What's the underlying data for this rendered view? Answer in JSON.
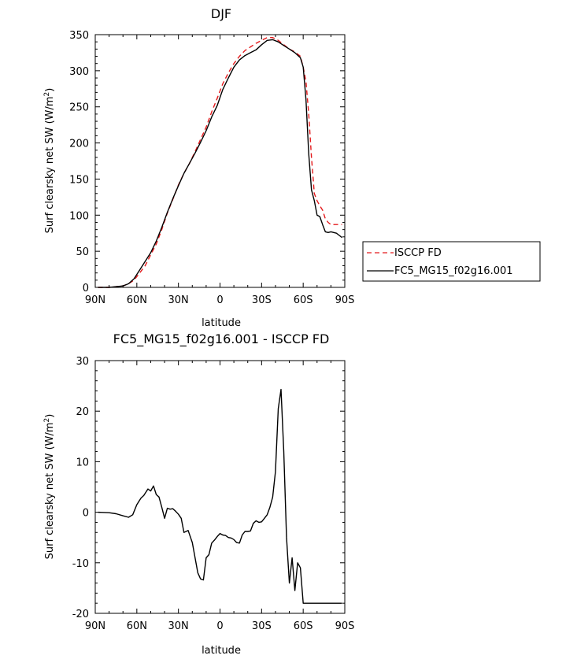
{
  "chart_data": [
    {
      "type": "line",
      "title": "DJF",
      "xlabel": "latitude",
      "ylabel": "Surf clearsky net SW (W/m",
      "ylabel_sup": "2",
      "ylabel_end": ")",
      "xlim": [
        -90,
        90
      ],
      "ylim": [
        0,
        350
      ],
      "x_ticks": [
        {
          "value": -90,
          "label": "90N"
        },
        {
          "value": -60,
          "label": "60N"
        },
        {
          "value": -30,
          "label": "30N"
        },
        {
          "value": 0,
          "label": "0"
        },
        {
          "value": 30,
          "label": "30S"
        },
        {
          "value": 60,
          "label": "60S"
        },
        {
          "value": 90,
          "label": "90S"
        }
      ],
      "y_ticks": [
        0,
        50,
        100,
        150,
        200,
        250,
        300,
        350
      ],
      "grid": false,
      "legend_position": "right",
      "series": [
        {
          "name": "ISCCP FD",
          "color": "#e41a1c",
          "dash": true,
          "x": [
            -88,
            -80,
            -75,
            -70,
            -66,
            -62,
            -58,
            -54,
            -50,
            -46,
            -42,
            -38,
            -34,
            -30,
            -26,
            -22,
            -18,
            -14,
            -10,
            -6,
            -2,
            2,
            6,
            10,
            14,
            18,
            22,
            26,
            30,
            34,
            38,
            42,
            46,
            50,
            54,
            58,
            60,
            62,
            64,
            66,
            68,
            70,
            72,
            74,
            76,
            78,
            80,
            82,
            84,
            86,
            88
          ],
          "y": [
            0,
            0,
            1,
            2,
            5,
            10,
            20,
            30,
            45,
            60,
            80,
            103,
            122,
            142,
            158,
            172,
            188,
            205,
            222,
            243,
            262,
            282,
            297,
            310,
            320,
            328,
            333,
            338,
            342,
            346,
            346,
            342,
            336,
            330,
            326,
            320,
            305,
            285,
            240,
            180,
            130,
            120,
            113,
            107,
            95,
            90,
            87,
            87,
            87,
            87,
            87
          ]
        },
        {
          "name": "FC5_MG15_f02g16.001",
          "color": "#000000",
          "dash": false,
          "x": [
            -88,
            -80,
            -75,
            -70,
            -66,
            -62,
            -58,
            -54,
            -50,
            -46,
            -42,
            -38,
            -34,
            -30,
            -26,
            -22,
            -18,
            -14,
            -10,
            -6,
            -2,
            2,
            6,
            10,
            14,
            18,
            22,
            26,
            30,
            34,
            38,
            42,
            46,
            50,
            54,
            58,
            60,
            62,
            64,
            66,
            68,
            70,
            72,
            74,
            76,
            78,
            80,
            82,
            84,
            86,
            88
          ],
          "y": [
            0,
            0,
            1,
            2,
            5,
            12,
            24,
            36,
            48,
            64,
            83,
            104,
            123,
            141,
            158,
            172,
            186,
            201,
            217,
            236,
            252,
            274,
            290,
            305,
            315,
            321,
            325,
            329,
            336,
            342,
            343,
            340,
            335,
            330,
            325,
            318,
            305,
            260,
            185,
            135,
            120,
            100,
            98,
            87,
            77,
            76,
            77,
            76,
            75,
            72,
            69
          ]
        }
      ]
    },
    {
      "type": "line",
      "title": "FC5_MG15_f02g16.001 - ISCCP FD",
      "xlabel": "latitude",
      "ylabel": "Surf clearsky net SW (W/m",
      "ylabel_sup": "2",
      "ylabel_end": ")",
      "xlim": [
        -90,
        90
      ],
      "ylim": [
        -20,
        30
      ],
      "x_ticks": [
        {
          "value": -90,
          "label": "90N"
        },
        {
          "value": -60,
          "label": "60N"
        },
        {
          "value": -30,
          "label": "30N"
        },
        {
          "value": 0,
          "label": "0"
        },
        {
          "value": 30,
          "label": "30S"
        },
        {
          "value": 60,
          "label": "60S"
        },
        {
          "value": 90,
          "label": "90S"
        }
      ],
      "y_ticks": [
        -20,
        -10,
        0,
        10,
        20,
        30
      ],
      "grid": false,
      "series": [
        {
          "color": "#000000",
          "dash": false,
          "x": [
            -88,
            -80,
            -75,
            -70,
            -66,
            -63,
            -60,
            -57,
            -55,
            -52,
            -50,
            -48,
            -46,
            -44,
            -42,
            -40,
            -38,
            -36,
            -34,
            -32,
            -30,
            -28,
            -26,
            -23,
            -20,
            -18,
            -16,
            -14,
            -12,
            -10,
            -8,
            -6,
            -4,
            -2,
            0,
            2,
            4,
            6,
            8,
            10,
            12,
            14,
            16,
            18,
            20,
            22,
            24,
            26,
            28,
            30,
            32,
            34,
            36,
            38,
            40,
            42,
            44,
            46,
            48,
            50,
            52,
            54,
            56,
            58,
            60,
            62,
            64,
            66,
            68,
            70,
            72,
            74,
            76,
            78,
            80,
            82,
            84,
            86,
            88
          ],
          "y": [
            0,
            -0.1,
            -0.3,
            -0.7,
            -1.0,
            -0.5,
            1.5,
            2.8,
            3.3,
            4.6,
            4.2,
            5.2,
            3.5,
            3.0,
            1.0,
            -1.2,
            0.8,
            0.6,
            0.7,
            0.2,
            -0.4,
            -1.2,
            -4.0,
            -3.6,
            -6.0,
            -9.0,
            -12.0,
            -13.2,
            -13.4,
            -9.0,
            -8.4,
            -6.1,
            -5.5,
            -4.8,
            -4.2,
            -4.5,
            -4.6,
            -5.0,
            -5.1,
            -5.4,
            -6.0,
            -6.1,
            -4.5,
            -3.8,
            -3.8,
            -3.7,
            -2.2,
            -1.7,
            -2.0,
            -1.9,
            -1.2,
            -0.5,
            1.0,
            3.0,
            8.0,
            20.5,
            24.3,
            12.0,
            -5.0,
            -14.0,
            -9.0,
            -15.5,
            -10.0,
            -11.0,
            -18.0,
            -18.0,
            -18.0,
            -18.0,
            -18.0,
            -18.0,
            -18.0,
            -18.0,
            -18.0,
            -18.0,
            -18.0,
            -18.0,
            -18.0,
            -18.0,
            -18.0
          ]
        }
      ]
    }
  ]
}
